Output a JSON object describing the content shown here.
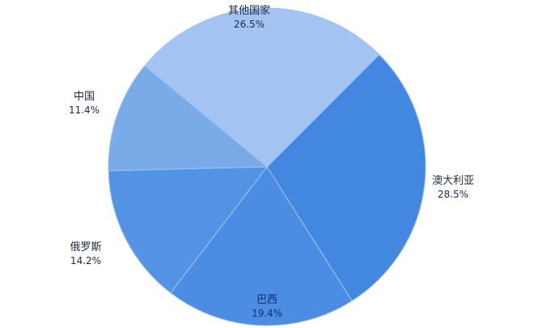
{
  "chart_data": {
    "type": "pie",
    "start_angle_deg": 45,
    "direction": "clockwise",
    "slices": [
      {
        "label": "澳大利亚",
        "value": 28.5,
        "value_label": "28.5%",
        "color": "#4287e0"
      },
      {
        "label": "巴西",
        "value": 19.4,
        "value_label": "19.4%",
        "color": "#4a8de2"
      },
      {
        "label": "俄罗斯",
        "value": 14.2,
        "value_label": "14.2%",
        "color": "#5293e4"
      },
      {
        "label": "中国",
        "value": 11.4,
        "value_label": "11.4%",
        "color": "#7aabe9"
      },
      {
        "label": "其他国家",
        "value": 26.5,
        "value_label": "26.5%",
        "color": "#a3c4f3"
      }
    ],
    "slice_border_color": "#9fc2f2",
    "legend": "none",
    "labels_position": "outside"
  }
}
